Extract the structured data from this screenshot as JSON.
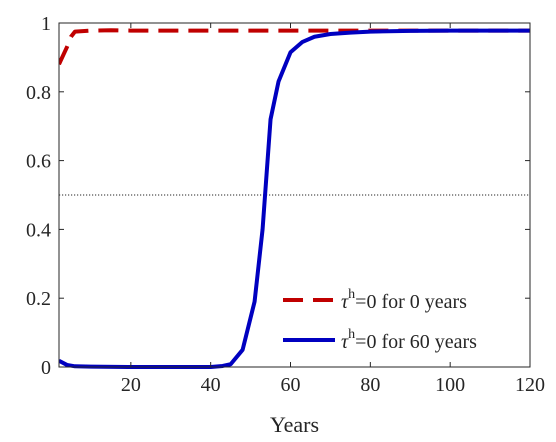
{
  "chart_data": {
    "type": "line",
    "title": "",
    "xlabel": "Years",
    "ylabel": "",
    "xlim": [
      2,
      120
    ],
    "ylim": [
      0,
      1
    ],
    "xticks": [
      20,
      40,
      60,
      80,
      100,
      120
    ],
    "yticks": [
      0,
      0.2,
      0.4,
      0.6,
      0.8,
      1
    ],
    "ytick_labels": [
      "0",
      "0.2",
      "0.4",
      "0.6",
      "0.8",
      "1"
    ],
    "grid": false,
    "legend_position": "bottom-right",
    "reference_lines": [
      {
        "orientation": "horizontal",
        "y": 0.5,
        "style": "dotted",
        "color": "#262626"
      }
    ],
    "series": [
      {
        "name": "τ^h=0 for 0 years",
        "legend": {
          "symbol": "τ",
          "sup": "h",
          "rest": "=0 for 0 years"
        },
        "color": "#c00000",
        "style": "dashed",
        "x": [
          2,
          4,
          5,
          6,
          10,
          15,
          20,
          30,
          40,
          50,
          60,
          70,
          80,
          90,
          100,
          110,
          120
        ],
        "y": [
          0.88,
          0.93,
          0.96,
          0.975,
          0.978,
          0.979,
          0.978,
          0.978,
          0.978,
          0.978,
          0.978,
          0.978,
          0.978,
          0.978,
          0.978,
          0.978,
          0.978
        ]
      },
      {
        "name": "τ^h=0 for 60 years",
        "legend": {
          "symbol": "τ",
          "sup": "h",
          "rest": "=0 for 60 years"
        },
        "color": "#0000c0",
        "style": "solid",
        "x": [
          2,
          4,
          6,
          10,
          20,
          30,
          40,
          43,
          45,
          48,
          51,
          53,
          55,
          57,
          60,
          63,
          66,
          70,
          75,
          80,
          90,
          100,
          110,
          120
        ],
        "y": [
          0.018,
          0.006,
          0.002,
          0.001,
          0.0,
          0.0,
          0.0,
          0.003,
          0.008,
          0.05,
          0.19,
          0.4,
          0.72,
          0.83,
          0.915,
          0.945,
          0.96,
          0.968,
          0.972,
          0.975,
          0.977,
          0.978,
          0.978,
          0.978
        ]
      }
    ]
  }
}
